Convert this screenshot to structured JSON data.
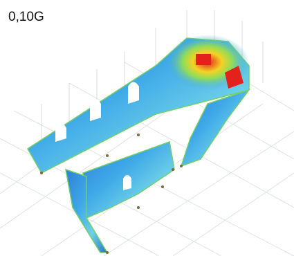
{
  "label": "0,10G"
}
